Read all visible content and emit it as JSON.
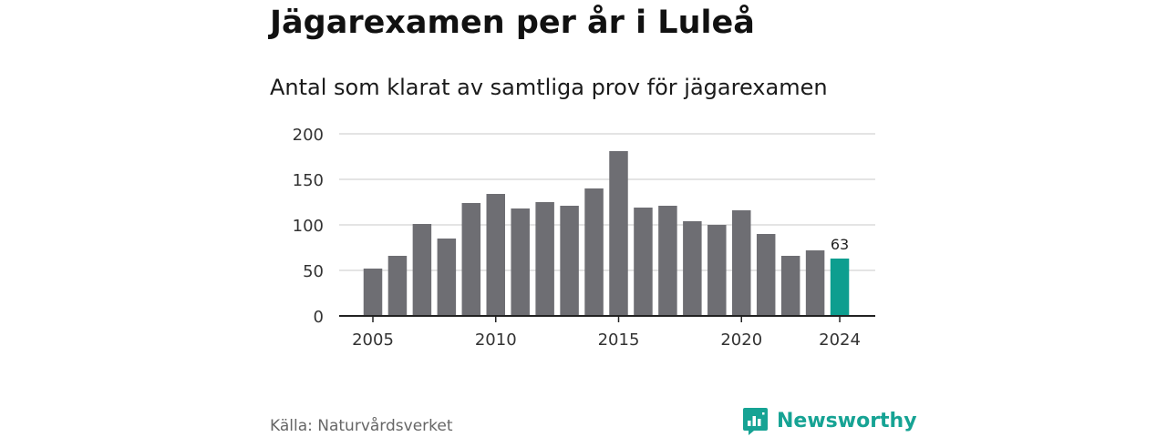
{
  "title": "Jägarexamen per år i Luleå",
  "subtitle": "Antal som klarat av samtliga prov för jägarexamen",
  "source": "Källa: Naturvårdsverket",
  "brand": {
    "name": "Newsworthy",
    "icon": "newsworthy-logo-icon",
    "color": "#16a394"
  },
  "colors": {
    "bar": "#6e6e73",
    "highlight": "#0d9e8f",
    "grid": "#dcdcdc",
    "axis": "#222222"
  },
  "chart_data": {
    "type": "bar",
    "title": "Jägarexamen per år i Luleå",
    "subtitle": "Antal som klarat av samtliga prov för jägarexamen",
    "xlabel": "",
    "ylabel": "",
    "x": [
      2005,
      2006,
      2007,
      2008,
      2009,
      2010,
      2011,
      2012,
      2013,
      2014,
      2015,
      2016,
      2017,
      2018,
      2019,
      2020,
      2021,
      2022,
      2023,
      2024
    ],
    "values": [
      52,
      66,
      101,
      85,
      124,
      134,
      118,
      125,
      121,
      140,
      181,
      119,
      121,
      104,
      100,
      116,
      90,
      66,
      72,
      63
    ],
    "xticks": [
      2005,
      2010,
      2015,
      2020,
      2024
    ],
    "yticks": [
      0,
      50,
      100,
      150,
      200
    ],
    "ylim": [
      0,
      200
    ],
    "grid": true,
    "highlight_x": 2024,
    "data_labels": [
      {
        "x": 2024,
        "text": "63"
      }
    ]
  }
}
